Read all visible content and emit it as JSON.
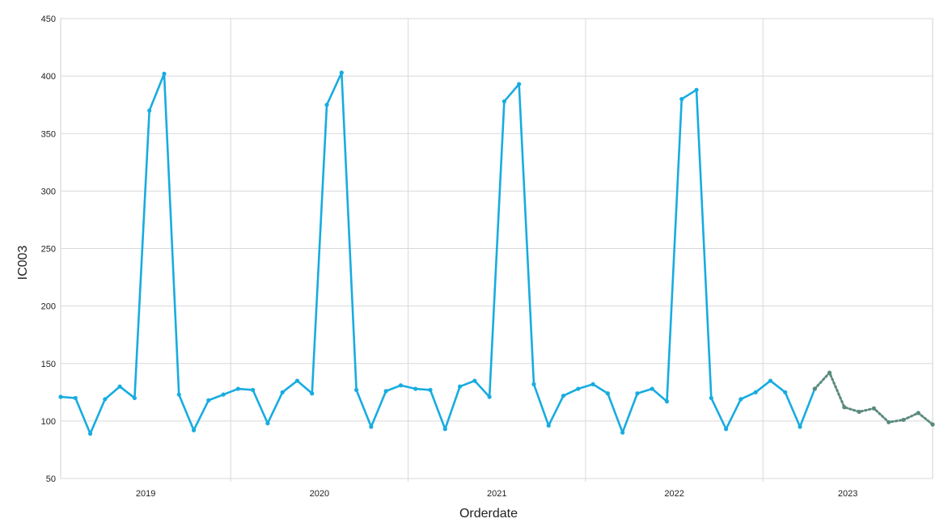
{
  "chart_data": {
    "type": "line",
    "xlabel": "Orderdate",
    "ylabel": "IC003",
    "ylim": [
      50,
      450
    ],
    "yticks": [
      "50",
      "100",
      "150",
      "200",
      "250",
      "300",
      "350",
      "400",
      "450"
    ],
    "year_labels": [
      "2019",
      "2020",
      "2021",
      "2022",
      "2023"
    ],
    "grid": true,
    "legend": "none",
    "colors": {
      "actual": "#17ace0",
      "forecast": "#5b8a7e"
    },
    "series": [
      {
        "style": "solid",
        "values": [
          121,
          120,
          89,
          119,
          130,
          120,
          370,
          402,
          123,
          92,
          118,
          123,
          128,
          127,
          98,
          125,
          135,
          124,
          375,
          403,
          127,
          95,
          126,
          131,
          128,
          127,
          93,
          130,
          135,
          121,
          378,
          393,
          132,
          96,
          122,
          128,
          132,
          124,
          90,
          124,
          128,
          117,
          380,
          388,
          120,
          93,
          119,
          125,
          135,
          125,
          95,
          128
        ]
      },
      {
        "style": "dotted",
        "values": [
          128,
          142,
          112,
          108,
          111,
          99,
          101,
          107,
          97
        ]
      }
    ]
  }
}
